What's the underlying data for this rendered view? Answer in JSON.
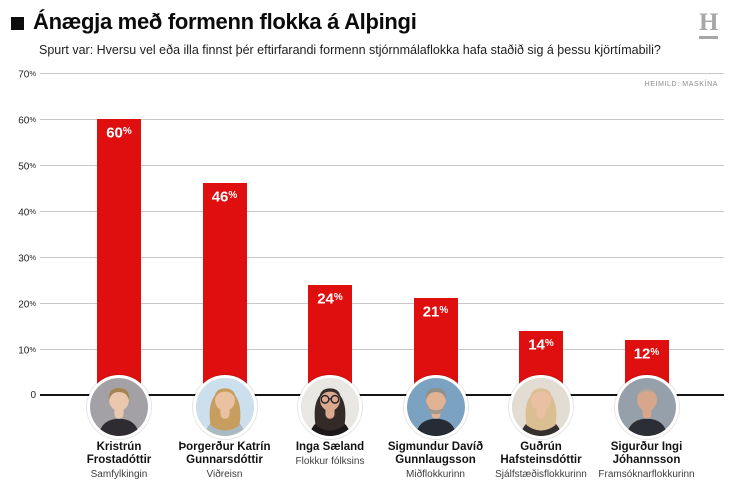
{
  "header": {
    "title": "Ánægja með formenn flokka á Alþingi",
    "subtitle": "Spurt var: Hversu vel eða illa finnst þér eftirfarandi formenn stjórnmálaflokka hafa staðið sig á þessu kjörtímabili?",
    "logo_letter": "H",
    "source_label": "HEIMILD: MASKÍNA"
  },
  "chart_data": {
    "type": "bar",
    "title": "Ánægja með formenn flokka á Alþingi",
    "unit": "%",
    "categories": [
      "Kristrún Frostadóttir",
      "Þorgerður Katrín Gunnarsdóttir",
      "Inga Sæland",
      "Sigmundur Davíð Gunnlaugsson",
      "Guðrún Hafsteinsdóttir",
      "Sigurður Ingi Jóhannsson"
    ],
    "parties": [
      "Samfylkingin",
      "Viðreisn",
      "Flokkur fólksins",
      "Miðflokkurinn",
      "Sjálfstæðisflokkurinn",
      "Framsóknarflokkurinn"
    ],
    "values": [
      60,
      46,
      24,
      21,
      14,
      12
    ],
    "bar_labels": [
      "60%",
      "46%",
      "24%",
      "21%",
      "14%",
      "12%"
    ],
    "ylim": [
      0,
      70
    ],
    "ytick_labels": [
      "70%",
      "60%",
      "50%",
      "40%",
      "30%",
      "20%",
      "10%",
      "0"
    ],
    "grid": true,
    "legend": false,
    "bar_color": "#df0f0f",
    "bar_label_color": "#ffffff",
    "gridline_color": "#c9c9c9",
    "baseline_color": "#141414",
    "photos": [
      {
        "bg": "#a4a1a6",
        "hair": "short",
        "hair_color": "#a5854f",
        "skin": "#eac7ad",
        "top": "#2e2c31",
        "beard": false,
        "glasses": false
      },
      {
        "bg": "#cbdfec",
        "hair": "long",
        "hair_color": "#c79e5f",
        "skin": "#eac2a2",
        "top": "#a9bac3",
        "beard": false,
        "glasses": false
      },
      {
        "bg": "#e9e7e3",
        "hair": "long",
        "hair_color": "#342a27",
        "skin": "#d9aa8f",
        "top": "#1c1819",
        "beard": false,
        "glasses": true
      },
      {
        "bg": "#7ba2c1",
        "hair": "short",
        "hair_color": "#8f8f8c",
        "skin": "#e2b295",
        "top": "#262b34",
        "beard": true,
        "beard_color": "#a09a90",
        "glasses": false
      },
      {
        "bg": "#e2dcd2",
        "hair": "long",
        "hair_color": "#d9bf92",
        "skin": "#eac0a4",
        "top": "#33302e",
        "beard": false,
        "glasses": false
      },
      {
        "bg": "#95a0aa",
        "hair": "thin",
        "hair_color": "#aaa69e",
        "skin": "#d7a78c",
        "top": "#2b2e35",
        "beard": false,
        "glasses": false
      }
    ]
  }
}
